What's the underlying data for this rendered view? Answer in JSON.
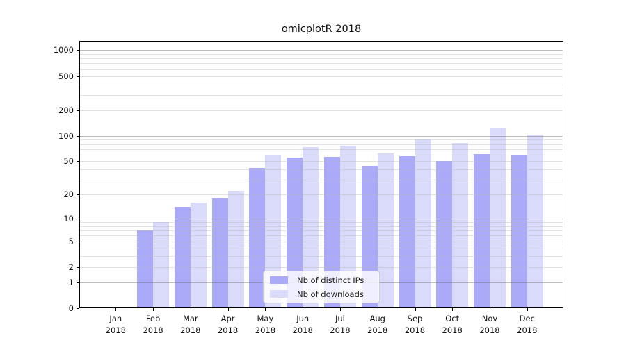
{
  "chart_data": {
    "type": "bar",
    "title": "omicplotR 2018",
    "x_year": "2018",
    "months": [
      "Jan",
      "Feb",
      "Mar",
      "Apr",
      "May",
      "Jun",
      "Jul",
      "Aug",
      "Sep",
      "Oct",
      "Nov",
      "Dec"
    ],
    "series": [
      {
        "name": "Nb of distinct IPs",
        "color": "#aaaaf9",
        "values": [
          0,
          7,
          14,
          18,
          42,
          55,
          57,
          44,
          58,
          50,
          61,
          59
        ]
      },
      {
        "name": "Nb of downloads",
        "color": "#dadafa",
        "values": [
          0,
          9,
          16,
          22,
          59,
          74,
          76,
          62,
          91,
          82,
          124,
          104
        ]
      }
    ],
    "y_scale": "log1p",
    "y_ticks": [
      0,
      1,
      2,
      5,
      10,
      20,
      50,
      100,
      200,
      500,
      1000
    ],
    "ylim_top": 1250,
    "grid": {
      "major_lines": [
        1,
        10,
        100,
        1000
      ],
      "minor_lines": [
        2,
        3,
        4,
        5,
        6,
        7,
        8,
        9,
        20,
        30,
        40,
        50,
        60,
        70,
        80,
        90,
        200,
        300,
        400,
        500,
        600,
        700,
        800,
        900
      ]
    },
    "legend": {
      "position": "lower center"
    }
  }
}
